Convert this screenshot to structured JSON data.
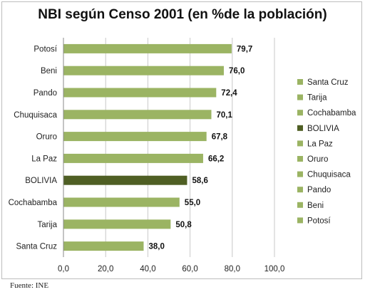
{
  "chart_data": {
    "type": "bar",
    "orientation": "horizontal",
    "title": "NBI según Censo 2001 (en %de la población)",
    "categories": [
      "Potosí",
      "Beni",
      "Pando",
      "Chuquisaca",
      "Oruro",
      "La Paz",
      "BOLIVIA",
      "Cochabamba",
      "Tarija",
      "Santa Cruz"
    ],
    "values": [
      79.7,
      76.0,
      72.4,
      70.1,
      67.8,
      66.2,
      58.6,
      55.0,
      50.8,
      38.0
    ],
    "value_labels": [
      "79,7",
      "76,0",
      "72,4",
      "70,1",
      "67,8",
      "66,2",
      "58,6",
      "55,0",
      "50,8",
      "38,0"
    ],
    "xlim": [
      0,
      100
    ],
    "x_ticks": [
      0,
      20,
      40,
      60,
      80,
      100
    ],
    "x_tick_labels": [
      "0,0",
      "20,0",
      "40,0",
      "60,0",
      "80,0",
      "100,0"
    ],
    "grid": true,
    "legend_position": "right",
    "legend_entries": [
      "Santa Cruz",
      "Tarija",
      "Cochabamba",
      "BOLIVIA",
      "La Paz",
      "Oruro",
      "Chuquisaca",
      "Pando",
      "Beni",
      "Potosí"
    ],
    "highlight_category": "BOLIVIA",
    "colors": {
      "bar": "#9bb463",
      "highlight": "#4f5f24",
      "grid": "#c8c8c8"
    }
  },
  "source": "Fuente: INE"
}
